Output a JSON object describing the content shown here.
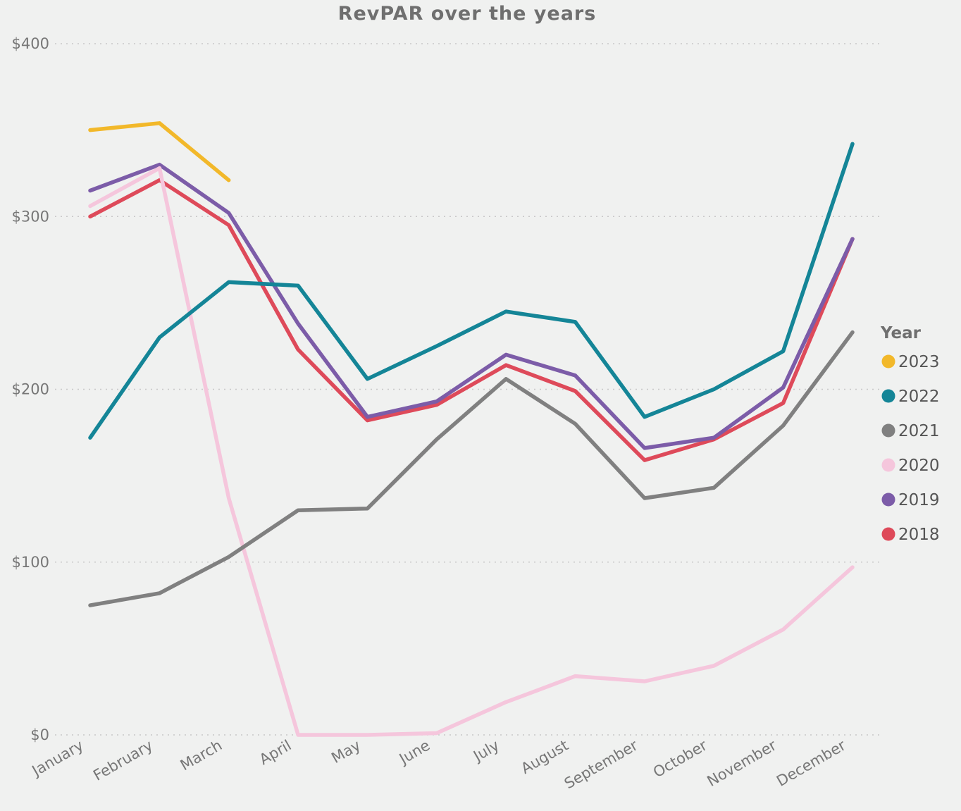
{
  "chart_data": {
    "type": "line",
    "title": "RevPAR over the years",
    "xlabel": "",
    "ylabel": "",
    "categories": [
      "January",
      "February",
      "March",
      "April",
      "May",
      "June",
      "July",
      "August",
      "September",
      "October",
      "November",
      "December"
    ],
    "y_ticks": [
      "$0",
      "$100",
      "$200",
      "$300",
      "$400"
    ],
    "y_tick_values": [
      0,
      100,
      200,
      300,
      400
    ],
    "ylim": [
      0,
      400
    ],
    "grid": true,
    "legend": {
      "title": "Year",
      "position": "right"
    },
    "series": [
      {
        "name": "2023",
        "color": "#f2b82a",
        "values": [
          350,
          354,
          321,
          null,
          null,
          null,
          null,
          null,
          null,
          null,
          null,
          null
        ]
      },
      {
        "name": "2022",
        "color": "#148597",
        "values": [
          172,
          230,
          262,
          260,
          206,
          225,
          245,
          239,
          184,
          200,
          222,
          342
        ]
      },
      {
        "name": "2021",
        "color": "#808080",
        "values": [
          75,
          82,
          103,
          130,
          131,
          171,
          206,
          180,
          137,
          143,
          179,
          233
        ]
      },
      {
        "name": "2020",
        "color": "#f5c6dc",
        "values": [
          306,
          328,
          137,
          0,
          0,
          1,
          19,
          34,
          31,
          40,
          61,
          97
        ]
      },
      {
        "name": "2019",
        "color": "#7c5ca8",
        "values": [
          315,
          330,
          302,
          238,
          184,
          193,
          220,
          208,
          166,
          172,
          201,
          287
        ]
      },
      {
        "name": "2018",
        "color": "#de4a5a",
        "values": [
          300,
          321,
          295,
          223,
          182,
          191,
          214,
          199,
          159,
          171,
          192,
          287
        ]
      }
    ]
  }
}
